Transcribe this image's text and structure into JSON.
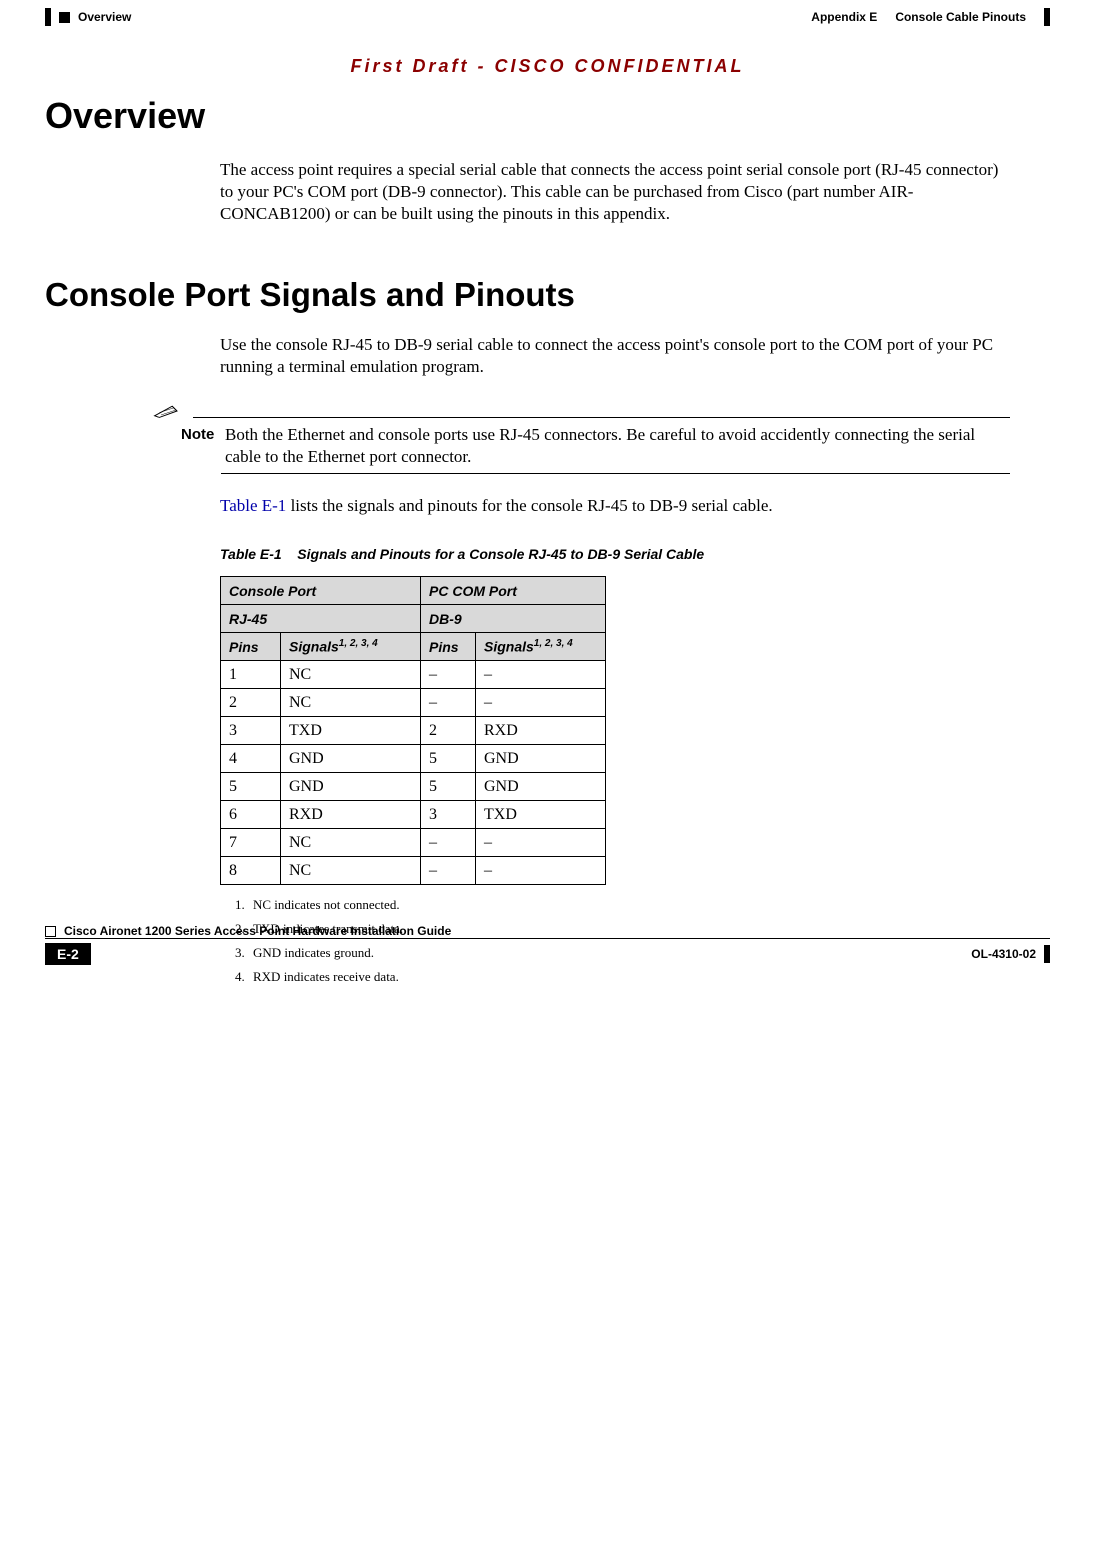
{
  "header": {
    "section_left": "Overview",
    "appendix": "Appendix E",
    "appendix_title": "Console Cable Pinouts"
  },
  "draft_banner": "First Draft - CISCO CONFIDENTIAL",
  "sections": {
    "overview": {
      "heading": "Overview",
      "body": "The access point requires a special serial cable that connects the access point serial console port (RJ-45 connector) to your PC's COM port (DB-9 connector). This cable can be purchased from Cisco (part number AIR-CONCAB1200) or can be built using the pinouts in this appendix."
    },
    "signals": {
      "heading": "Console Port Signals and Pinouts",
      "body": "Use the console RJ-45 to DB-9 serial cable to connect the access point's console port to the COM port of your PC running a terminal emulation program.",
      "note_label": "Note",
      "note_text": "Both the Ethernet and console ports use RJ-45 connectors. Be careful to avoid accidently connecting the serial cable to the Ethernet port connector.",
      "ref_prefix": "Table E-1",
      "ref_suffix": " lists the signals and pinouts for the console RJ-45 to DB-9 serial cable."
    }
  },
  "table": {
    "caption_label": "Table E-1",
    "caption_text": "Signals and Pinouts for a Console RJ-45 to DB-9 Serial Cable",
    "group_headers": {
      "left": "Console Port",
      "right": "PC COM Port"
    },
    "sub_headers": {
      "left": "RJ-45",
      "right": "DB-9"
    },
    "col_headers": {
      "pins_l": "Pins",
      "signals_l": "Signals",
      "signals_l_sup": "1, 2, 3, 4",
      "pins_r": "Pins",
      "signals_r": "Signals",
      "signals_r_sup": "1, 2, 3, 4"
    },
    "rows": [
      {
        "p1": "1",
        "s1": "NC",
        "p2": "–",
        "s2": "–"
      },
      {
        "p1": "2",
        "s1": "NC",
        "p2": "–",
        "s2": "–"
      },
      {
        "p1": "3",
        "s1": "TXD",
        "p2": "2",
        "s2": "RXD"
      },
      {
        "p1": "4",
        "s1": "GND",
        "p2": "5",
        "s2": "GND"
      },
      {
        "p1": "5",
        "s1": "GND",
        "p2": "5",
        "s2": "GND"
      },
      {
        "p1": "6",
        "s1": "RXD",
        "p2": "3",
        "s2": "TXD"
      },
      {
        "p1": "7",
        "s1": "NC",
        "p2": "–",
        "s2": "–"
      },
      {
        "p1": "8",
        "s1": "NC",
        "p2": "–",
        "s2": "–"
      }
    ],
    "footnotes": [
      "NC indicates not connected.",
      "TXD indicates transmit data.",
      "GND indicates ground.",
      "RXD indicates receive data."
    ]
  },
  "footer": {
    "guide_title": "Cisco Aironet 1200 Series Access Point Hardware Installation Guide",
    "page_number": "E-2",
    "doc_number": "OL-4310-02"
  },
  "colors": {
    "draft_red": "#8b0000",
    "link_blue": "#0000aa",
    "header_gray": "#d9d9d9"
  }
}
